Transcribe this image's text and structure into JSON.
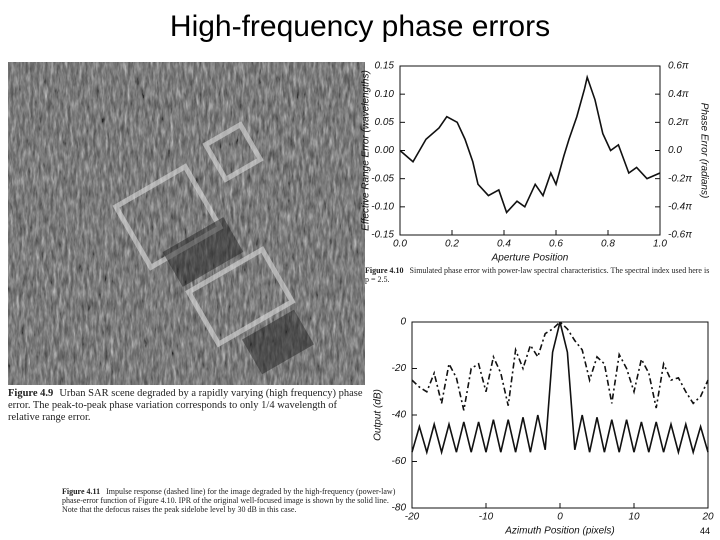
{
  "title": "High-frequency phase errors",
  "page_number": "44",
  "captions": [
    {
      "label": "Figure 4.9",
      "text": "Urban SAR scene degraded by a rapidly varying (high frequency) phase error. The peak-to-peak phase variation corresponds to only 1/4 wavelength of relative range error."
    },
    {
      "label": "Figure 4.10",
      "text": "Simulated phase error with power-law spectral characteristics. The spectral index used here is p = 2.5."
    },
    {
      "label": "Figure 4.11",
      "text": "Impulse response (dashed line) for the image degraded by the high-frequency (power-law) phase-error function of Figure 4.10. IPR of the original well-focused image is shown by the solid line. Note that the defocus raises the peak sidelobe level by 30 dB in this case."
    }
  ],
  "chart_data": [
    {
      "type": "line",
      "xlabel": "Aperture Position",
      "ylabel": "Effective Range Error (wavelengths)",
      "y2label": "Phase Error (radians)",
      "x": [
        0,
        0.05,
        0.1,
        0.15,
        0.18,
        0.22,
        0.25,
        0.28,
        0.3,
        0.34,
        0.38,
        0.41,
        0.45,
        0.48,
        0.52,
        0.55,
        0.58,
        0.6,
        0.63,
        0.65,
        0.68,
        0.71,
        0.72,
        0.75,
        0.78,
        0.81,
        0.84,
        0.88,
        0.91,
        0.95,
        1.0
      ],
      "series": [
        {
          "color": "#111111",
          "line_style": "solid",
          "values": [
            0.0,
            -0.02,
            0.02,
            0.04,
            0.06,
            0.05,
            0.02,
            -0.02,
            -0.06,
            -0.08,
            -0.07,
            -0.11,
            -0.09,
            -0.1,
            -0.06,
            -0.08,
            -0.04,
            -0.06,
            -0.01,
            0.02,
            0.06,
            0.11,
            0.13,
            0.09,
            0.03,
            0.0,
            0.01,
            -0.04,
            -0.03,
            -0.05,
            -0.04
          ]
        }
      ],
      "xlim": [
        0,
        1
      ],
      "xticks": [
        {
          "value": 0,
          "label": "0.0"
        },
        0.2,
        0.4,
        0.6,
        0.8,
        {
          "value": 1,
          "label": "1.0"
        }
      ],
      "ylim": [
        -0.15,
        0.15
      ],
      "yticks": [
        0.15,
        {
          "value": 0.1,
          "label": "0.10"
        },
        0.05,
        {
          "value": 0,
          "label": "0.00"
        },
        -0.05,
        {
          "value": -0.1,
          "label": "-0.10"
        },
        -0.15
      ],
      "y2lim": [
        -1.885,
        1.885
      ],
      "y2ticks": [
        {
          "value": 1.885,
          "label": "0.6π"
        },
        {
          "value": 1.257,
          "label": "0.4π"
        },
        {
          "value": 0.628,
          "label": "0.2π"
        },
        {
          "value": 0,
          "label": "0.0"
        },
        {
          "value": -0.628,
          "label": "-0.2π"
        },
        {
          "value": -1.257,
          "label": "-0.4π"
        },
        {
          "value": -1.885,
          "label": "-0.6π"
        }
      ]
    },
    {
      "type": "line",
      "xlabel": "Azimuth Position (pixels)",
      "ylabel": "Output (dB)",
      "x": [
        -20,
        -19,
        -18,
        -17,
        -16,
        -15,
        -14,
        -13,
        -12,
        -11,
        -10,
        -9,
        -8,
        -7,
        -6,
        -5,
        -4,
        -3,
        -2,
        -1,
        0,
        1,
        2,
        3,
        4,
        5,
        6,
        7,
        8,
        9,
        10,
        11,
        12,
        13,
        14,
        15,
        16,
        17,
        18,
        19,
        20
      ],
      "series": [
        {
          "color": "#111111",
          "line_style": "dashed",
          "values": [
            -25,
            -28,
            -30,
            -22,
            -35,
            -18,
            -24,
            -38,
            -20,
            -18,
            -30,
            -15,
            -22,
            -36,
            -12,
            -20,
            -10,
            -15,
            -5,
            -3,
            0,
            -3,
            -8,
            -12,
            -25,
            -15,
            -18,
            -35,
            -14,
            -20,
            -30,
            -16,
            -22,
            -37,
            -18,
            -25,
            -24,
            -30,
            -35,
            -32,
            -25
          ]
        },
        {
          "color": "#111111",
          "line_style": "solid",
          "values": [
            -56,
            -45,
            -56,
            -44,
            -56,
            -44,
            -56,
            -43,
            -56,
            -43,
            -56,
            -42,
            -56,
            -42,
            -56,
            -41,
            -56,
            -40,
            -55,
            -13,
            0,
            -13,
            -55,
            -40,
            -56,
            -41,
            -56,
            -42,
            -56,
            -42,
            -56,
            -43,
            -56,
            -43,
            -56,
            -44,
            -56,
            -44,
            -56,
            -45,
            -56
          ]
        }
      ],
      "xlim": [
        -20,
        20
      ],
      "xticks": [
        -20,
        -10,
        0,
        10,
        20
      ],
      "ylim": [
        -80,
        0
      ],
      "yticks": [
        0,
        -20,
        -40,
        -60,
        -80
      ]
    }
  ]
}
